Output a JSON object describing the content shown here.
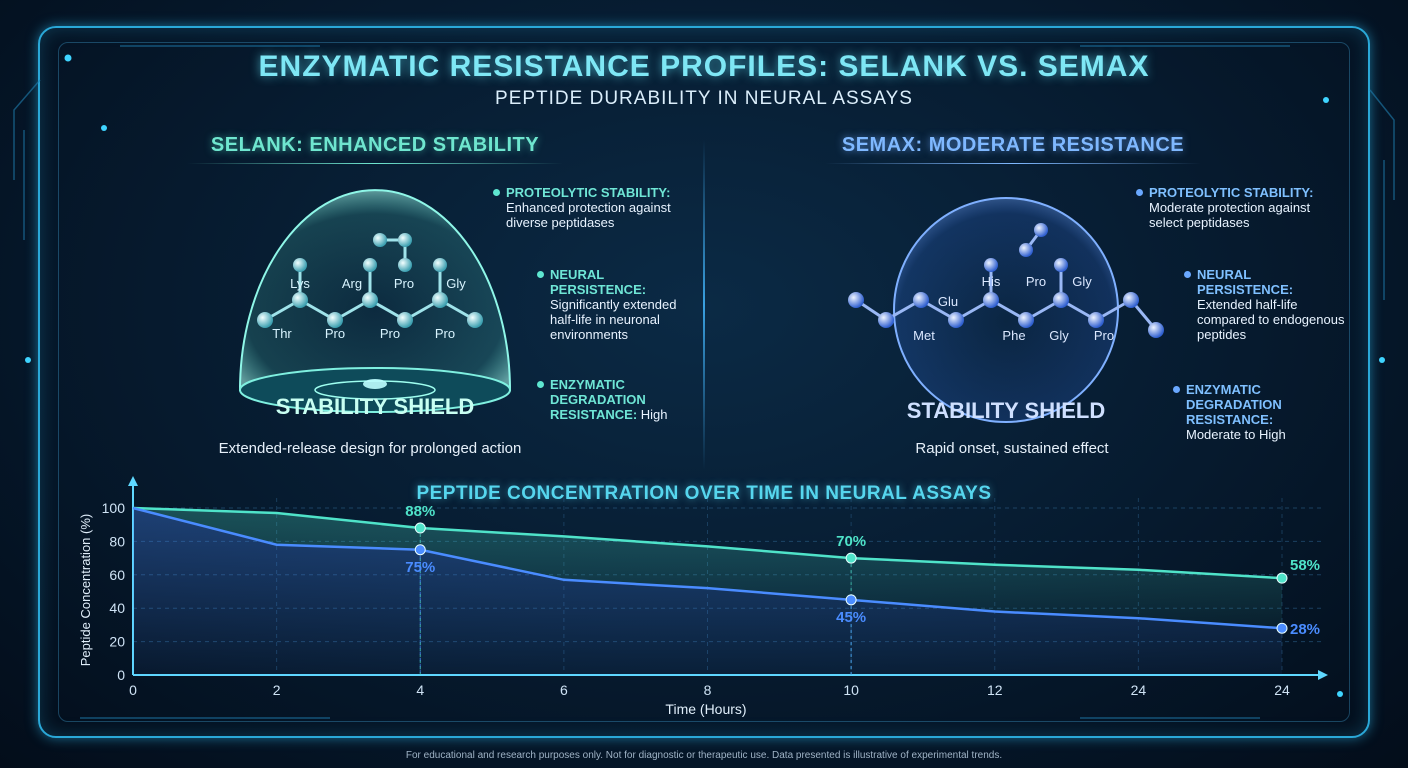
{
  "title": "ENZYMATIC RESISTANCE PROFILES: SELANK VS. SEMAX",
  "subtitle": "PEPTIDE DURABILITY IN NEURAL ASSAYS",
  "left_panel": {
    "heading": "SELANK: ENHANCED STABILITY",
    "shield_label": "STABILITY SHIELD",
    "residues": [
      "Lys",
      "Arg",
      "Pro",
      "Gly",
      "Thr",
      "Pro",
      "Pro",
      "Pro"
    ],
    "annotations": [
      {
        "key": "PROTEOLYTIC STABILITY:",
        "text": "Enhanced protection against diverse peptidases"
      },
      {
        "key": "NEURAL PERSISTENCE:",
        "text": "Significantly extended half-life in neuronal environments"
      },
      {
        "key": "ENZYMATIC DEGRADATION RESISTANCE:",
        "text": "High"
      }
    ],
    "caption": "Extended-release design for prolonged action",
    "color": "#5ee6d0"
  },
  "right_panel": {
    "heading": "SEMAX: MODERATE RESISTANCE",
    "shield_label": "STABILITY SHIELD",
    "residues": [
      "Glu",
      "His",
      "Pro",
      "Gly",
      "Met",
      "Phe",
      "Gly",
      "Pro"
    ],
    "annotations": [
      {
        "key": "PROTEOLYTIC STABILITY:",
        "text": "Moderate protection against select peptidases"
      },
      {
        "key": "NEURAL PERSISTENCE:",
        "text": "Extended half-life compared to endogenous peptides"
      },
      {
        "key": "ENZYMATIC DEGRADATION RESISTANCE:",
        "text": "Moderate to High"
      }
    ],
    "caption": "Rapid onset, sustained effect",
    "color": "#6aa8ff"
  },
  "chart_data": {
    "type": "area",
    "title": "PEPTIDE CONCENTRATION OVER TIME IN NEURAL ASSAYS",
    "xlabel": "Time (Hours)",
    "ylabel": "Peptide Concentration (%)",
    "x_ticks": [
      "0",
      "2",
      "4",
      "6",
      "8",
      "10",
      "12",
      "24",
      "24"
    ],
    "y_ticks": [
      0,
      20,
      40,
      60,
      80,
      100
    ],
    "ylim": [
      0,
      100
    ],
    "grid": true,
    "series": [
      {
        "color": "#4fe3c9",
        "points": [
          [
            0,
            100
          ],
          [
            2,
            97
          ],
          [
            4,
            88
          ],
          [
            6,
            83
          ],
          [
            8,
            77
          ],
          [
            10,
            70
          ],
          [
            12,
            66
          ],
          [
            24,
            63
          ],
          [
            24,
            58
          ]
        ],
        "labels": [
          {
            "index": 2,
            "text": "88%"
          },
          {
            "index": 5,
            "text": "70%"
          },
          {
            "index": 8,
            "text": "58%"
          }
        ]
      },
      {
        "color": "#4a8cff",
        "points": [
          [
            0,
            100
          ],
          [
            2,
            78
          ],
          [
            4,
            75
          ],
          [
            6,
            57
          ],
          [
            8,
            52
          ],
          [
            10,
            45
          ],
          [
            12,
            38
          ],
          [
            24,
            34
          ],
          [
            24,
            28
          ]
        ],
        "labels": [
          {
            "index": 2,
            "text": "75%"
          },
          {
            "index": 5,
            "text": "45%"
          },
          {
            "index": 8,
            "text": "28%"
          }
        ]
      }
    ]
  },
  "footer": "For educational and research purposes only. Not for diagnostic or therapeutic use. Data presented is illustrative of experimental trends."
}
